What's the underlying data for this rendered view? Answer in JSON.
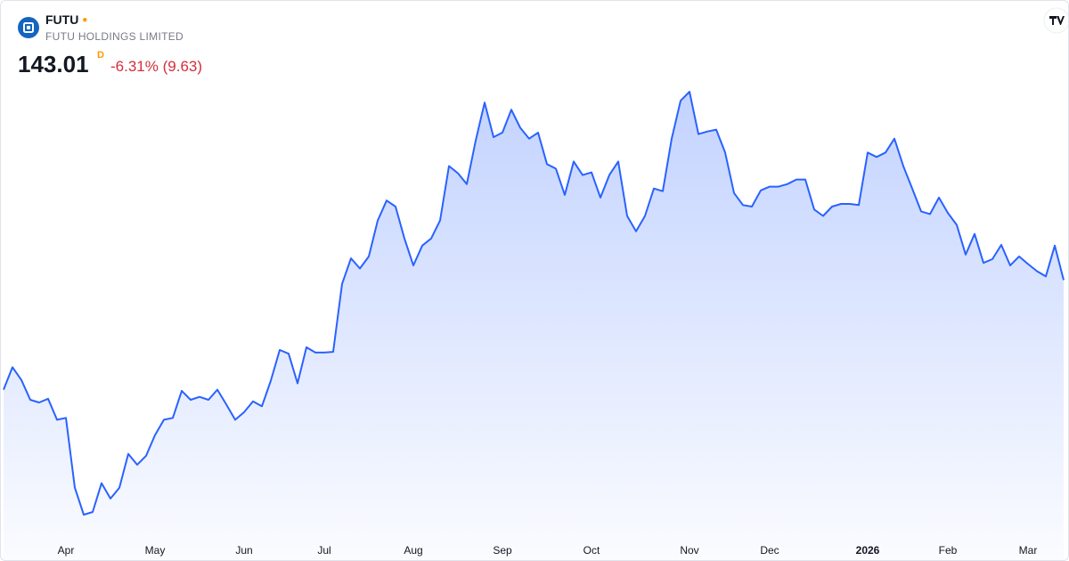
{
  "header": {
    "symbol": "FUTU",
    "company": "FUTU HOLDINGS LIMITED",
    "price": "143.01",
    "interval": "D",
    "change_percent": "-6.31%",
    "change": "(9.63)"
  },
  "chart_data": {
    "type": "area",
    "color": "#2962ff",
    "categories": [
      null,
      null,
      null,
      null,
      null,
      null,
      null,
      "Apr",
      null,
      null,
      null,
      null,
      null,
      null,
      null,
      null,
      null,
      "May",
      null,
      null,
      null,
      null,
      null,
      null,
      null,
      null,
      null,
      "Jun",
      null,
      null,
      null,
      null,
      null,
      null,
      null,
      null,
      "Jul",
      null,
      null,
      null,
      null,
      null,
      null,
      null,
      null,
      null,
      "Aug",
      null,
      null,
      null,
      null,
      null,
      null,
      null,
      null,
      null,
      "Sep",
      null,
      null,
      null,
      null,
      null,
      null,
      null,
      null,
      null,
      "Oct",
      null,
      null,
      null,
      null,
      null,
      null,
      null,
      null,
      null,
      null,
      "Nov",
      null,
      null,
      null,
      null,
      null,
      null,
      null,
      null,
      "Dec",
      null,
      null,
      null,
      null,
      null,
      null,
      null,
      null,
      null,
      null,
      "2026",
      null,
      null,
      null,
      null,
      null,
      null,
      null,
      null,
      "Feb",
      null,
      null,
      null,
      null,
      null,
      null,
      null,
      null,
      "Mar",
      null,
      null,
      null,
      null
    ],
    "values": [
      113.8,
      119.8,
      116.4,
      111.1,
      110.4,
      111.4,
      105.8,
      106.3,
      87.7,
      80.5,
      81.2,
      88.9,
      84.8,
      87.7,
      96.7,
      93.8,
      96.2,
      101.7,
      105.8,
      106.3,
      113.5,
      111.1,
      111.9,
      111.1,
      113.8,
      109.9,
      105.8,
      107.8,
      110.7,
      109.4,
      116.2,
      124.4,
      123.4,
      115.5,
      125.1,
      123.7,
      123.7,
      123.9,
      142.0,
      148.8,
      146.1,
      149.3,
      158.9,
      164.2,
      162.6,
      154.1,
      146.9,
      152.2,
      154.1,
      158.9,
      173.4,
      171.5,
      168.6,
      180.2,
      190.3,
      181.1,
      182.3,
      188.4,
      183.6,
      180.7,
      182.3,
      173.9,
      172.7,
      165.7,
      174.6,
      171.0,
      171.7,
      165.0,
      171.0,
      174.6,
      160.1,
      156.0,
      160.1,
      167.4,
      166.7,
      180.7,
      190.8,
      193.2,
      181.9,
      182.6,
      183.1,
      177.0,
      166.2,
      163.0,
      162.6,
      166.9,
      167.9,
      167.9,
      168.6,
      169.8,
      169.8,
      161.8,
      160.1,
      162.6,
      163.3,
      163.3,
      163.0,
      177.0,
      175.8,
      177.0,
      180.7,
      173.4,
      167.4,
      161.3,
      160.6,
      165.0,
      160.9,
      157.7,
      149.8,
      155.3,
      147.6,
      148.6,
      152.4,
      146.9,
      149.3,
      147.3,
      145.4,
      144.0,
      152.2,
      143.01
    ]
  }
}
